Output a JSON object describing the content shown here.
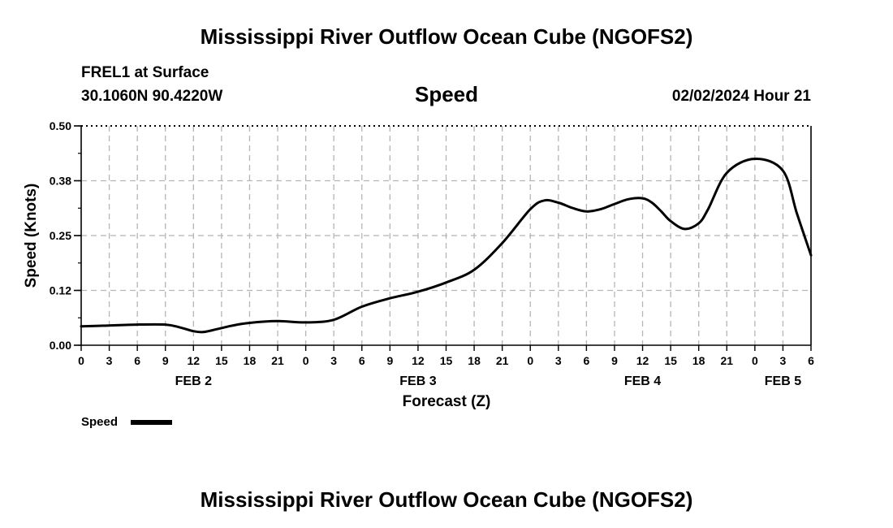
{
  "header": {
    "title": "Mississippi River Outflow Ocean Cube (NGOFS2)",
    "station": "FREL1 at Surface",
    "coords": "30.1060N  90.4220W",
    "variable": "Speed",
    "datetime": "02/02/2024 Hour 21"
  },
  "footer": {
    "title": "Mississippi River Outflow Ocean Cube (NGOFS2)"
  },
  "chart_data": {
    "type": "line",
    "title": "Mississippi River Outflow Ocean Cube (NGOFS2)",
    "subtitle": "Speed",
    "xlabel": "Forecast (Z)",
    "ylabel": "Speed (Knots)",
    "xlim": [
      0,
      78
    ],
    "ylim": [
      0,
      0.5
    ],
    "yticks": [
      0.0,
      0.125,
      0.25,
      0.375,
      0.5
    ],
    "ytick_labels": [
      "0.00",
      "0.12",
      "0.25",
      "0.38",
      "0.50"
    ],
    "xticks": [
      0,
      3,
      6,
      9,
      12,
      15,
      18,
      21,
      24,
      27,
      30,
      33,
      36,
      39,
      42,
      45,
      48,
      51,
      54,
      57,
      60,
      63,
      66,
      69,
      72,
      75,
      78
    ],
    "xtick_labels": [
      "0",
      "3",
      "6",
      "9",
      "12",
      "15",
      "18",
      "21",
      "0",
      "3",
      "6",
      "9",
      "12",
      "15",
      "18",
      "21",
      "0",
      "3",
      "6",
      "9",
      "12",
      "15",
      "18",
      "21",
      "0",
      "3",
      "6"
    ],
    "day_labels": [
      {
        "label": "FEB 2",
        "x": 12
      },
      {
        "label": "FEB 3",
        "x": 36
      },
      {
        "label": "FEB 4",
        "x": 60
      },
      {
        "label": "FEB 5",
        "x": 75
      }
    ],
    "grid": true,
    "legend": "bottom-left",
    "series": [
      {
        "name": "Speed",
        "color": "#000000",
        "x": [
          0,
          3,
          6,
          9,
          10.5,
          12,
          13,
          14,
          16,
          18,
          21,
          24,
          27,
          30,
          33,
          36,
          39,
          42,
          45,
          48,
          49.5,
          51,
          52.5,
          54,
          55.5,
          57,
          58.5,
          60,
          61,
          62,
          63,
          64.5,
          66,
          67,
          69,
          72,
          75,
          76.5,
          78
        ],
        "y": [
          0.043,
          0.045,
          0.047,
          0.047,
          0.041,
          0.032,
          0.03,
          0.034,
          0.044,
          0.051,
          0.055,
          0.052,
          0.058,
          0.088,
          0.107,
          0.122,
          0.143,
          0.172,
          0.233,
          0.31,
          0.33,
          0.325,
          0.313,
          0.305,
          0.31,
          0.322,
          0.333,
          0.335,
          0.325,
          0.305,
          0.283,
          0.265,
          0.278,
          0.31,
          0.393,
          0.425,
          0.398,
          0.3,
          0.205
        ]
      }
    ]
  }
}
